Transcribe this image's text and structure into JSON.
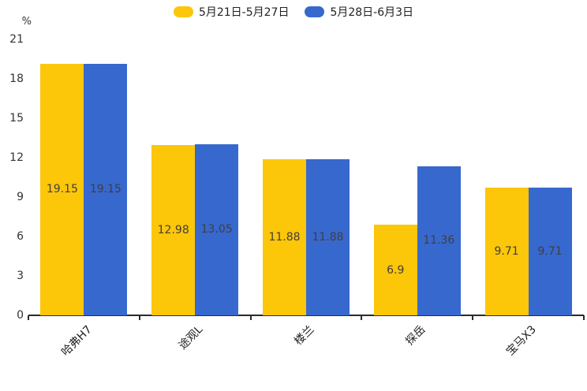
{
  "chart_data": {
    "type": "bar",
    "categories": [
      "哈弗H7",
      "途观L",
      "楼兰",
      "探岳",
      "宝马X3"
    ],
    "series": [
      {
        "name": "5月21日-5月27日",
        "color": "#fcc609",
        "values": [
          19.15,
          12.98,
          11.88,
          6.9,
          9.71
        ]
      },
      {
        "name": "5月28日-6月3日",
        "color": "#3768cd",
        "values": [
          19.15,
          13.05,
          11.88,
          11.36,
          9.71
        ]
      }
    ],
    "ylabel": "%",
    "ylim": [
      0,
      21
    ],
    "yticks": [
      0,
      3,
      6,
      9,
      12,
      15,
      18,
      21
    ],
    "grid": "off",
    "legend_position": "top-center",
    "value_labels": "inside-center",
    "xlabel_rotation": 45
  }
}
